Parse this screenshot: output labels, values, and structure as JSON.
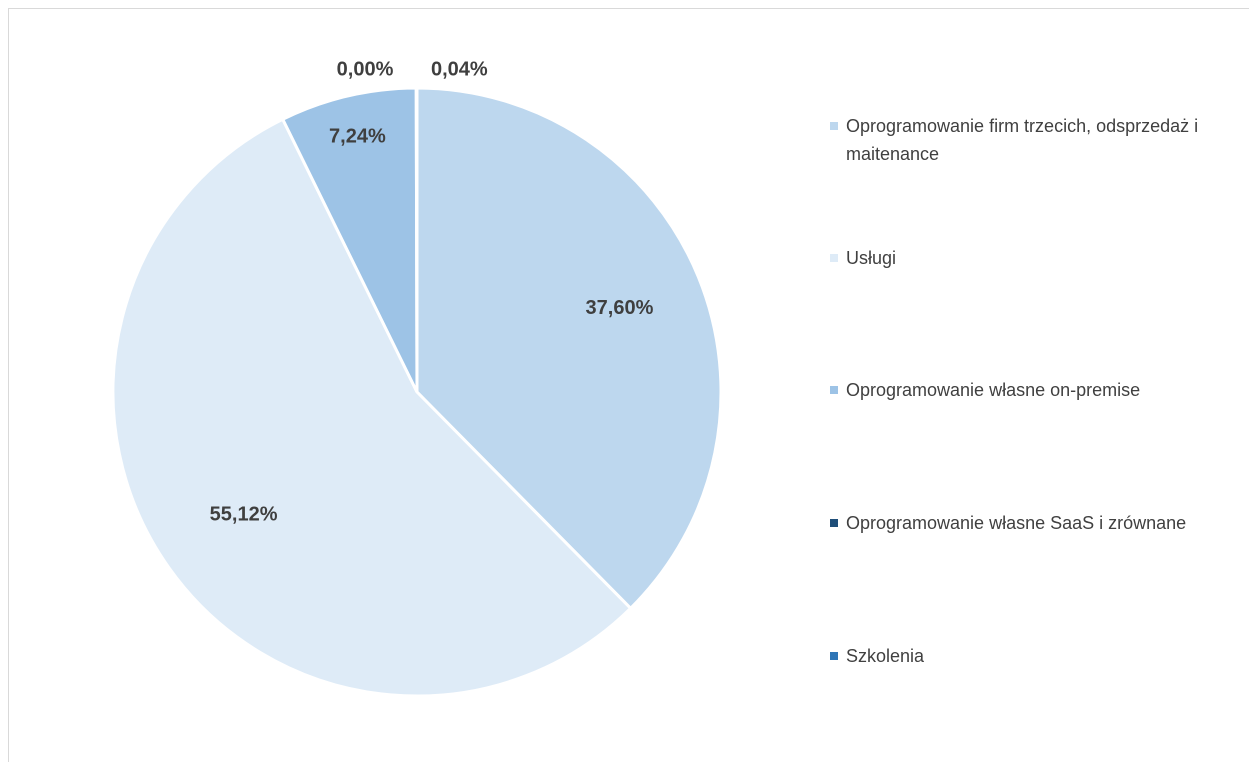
{
  "chart_data": {
    "type": "pie",
    "title": "",
    "categories": [
      "Oprogramowanie firm trzecich, odsprzedaż i maitenance",
      "Usługi",
      "Oprogramowanie własne on-premise",
      "Oprogramowanie własne SaaS i zrównane",
      "Szkolenia"
    ],
    "values": [
      37.6,
      55.12,
      7.24,
      0.0,
      0.04
    ],
    "data_labels": [
      "37,60%",
      "55,12%",
      "7,24%",
      "0,00%",
      "0,04%"
    ],
    "colors": [
      "#bdd7ee",
      "#deebf7",
      "#9dc3e6",
      "#1f4e79",
      "#2e75b6"
    ],
    "legend_position": "right",
    "start_angle_deg": 0,
    "direction": "clockwise"
  }
}
